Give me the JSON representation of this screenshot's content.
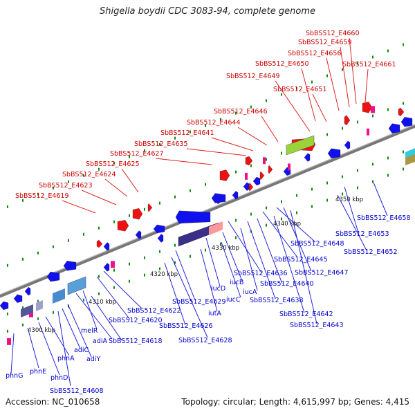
{
  "title": "Shigella boydii CDC 3083-94, complete genome",
  "footer": {
    "accession": "Accession: NC_010658",
    "summary": "Topology: circular; Length: 4,615,997 bp; Genes: 4,415"
  },
  "colors": {
    "backbone": "#8c8c8c",
    "forward_gene": "#ee1111",
    "reverse_gene": "#1111ee",
    "rna": "#ee1188",
    "pseudo": "#ff9999",
    "forward_label": "#cc0000",
    "reverse_label": "#0000cc",
    "dot": "#118811"
  },
  "ticks": [
    {
      "label": "4300 kbp"
    },
    {
      "label": "4310 kbp"
    },
    {
      "label": "4320 kbp"
    },
    {
      "label": "4330 kbp"
    },
    {
      "label": "4340 kbp"
    },
    {
      "label": "4350 kbp"
    }
  ],
  "labels_top": [
    "SbBS512_E4660",
    "SbBS512_E4659",
    "SbBS512_E4656",
    "SbBS512_E4661",
    "SbBS512_E4650",
    "SbBS512_E4649",
    "SbBS512_E4651",
    "SbBS512_E4646",
    "SbBS512_E4644",
    "SbBS512_E4641",
    "SbBS512_E4635",
    "SbBS512_E4627",
    "SbBS512_E4625",
    "SbBS512_E4624",
    "SbBS512_E4623",
    "SbBS512_E4619"
  ],
  "labels_bottom": [
    "SbBS512_E4658",
    "SbBS512_E4653",
    "SbBS512_E4652",
    "SbBS512_E4648",
    "SbBS512_E4645",
    "SbBS512_E4647",
    "SbBS512_E4636",
    "SbBS512_E4640",
    "iucB",
    "iucA",
    "iucD",
    "iucC",
    "SbBS512_E4638",
    "SbBS512_E4642",
    "SbBS512_E4643",
    "SbBS512_E4629",
    "iutA",
    "SbBS512_E4622",
    "SbBS512_E4620",
    "SbBS512_E4626",
    "SbBS512_E4628",
    "melR",
    "adiA",
    "SbBS512_E4618",
    "adiC",
    "adiY",
    "phnA",
    "phnE",
    "phnD",
    "phnG",
    "SbBS512_E4608"
  ]
}
